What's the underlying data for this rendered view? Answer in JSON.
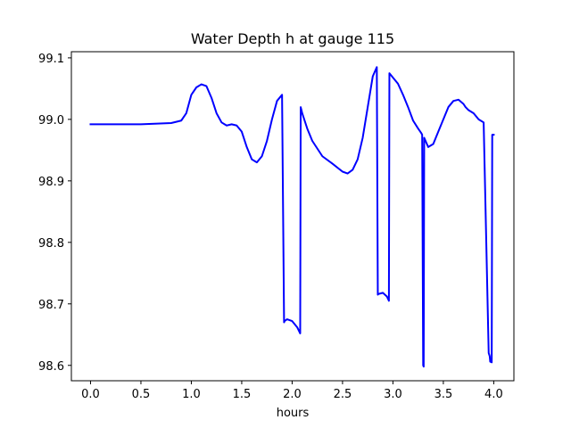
{
  "chart_data": {
    "type": "line",
    "title": "Water Depth h at gauge 115",
    "xlabel": "hours",
    "ylabel": "",
    "xlim": [
      -0.19,
      4.2
    ],
    "ylim": [
      98.575,
      99.11
    ],
    "xticks": [
      0.0,
      0.5,
      1.0,
      1.5,
      2.0,
      2.5,
      3.0,
      3.5,
      4.0
    ],
    "xtick_labels": [
      "0.0",
      "0.5",
      "1.0",
      "1.5",
      "2.0",
      "2.5",
      "3.0",
      "3.5",
      "4.0"
    ],
    "yticks": [
      98.6,
      98.7,
      98.8,
      98.9,
      99.0,
      99.1
    ],
    "ytick_labels": [
      "98.6",
      "98.7",
      "98.8",
      "98.9",
      "99.0",
      "99.1"
    ],
    "grid": false,
    "legend": "none",
    "series": [
      {
        "color": "#0000ff",
        "x": [
          0.0,
          0.5,
          0.8,
          0.9,
          0.95,
          1.0,
          1.05,
          1.1,
          1.15,
          1.2,
          1.25,
          1.3,
          1.35,
          1.4,
          1.45,
          1.5,
          1.55,
          1.6,
          1.65,
          1.7,
          1.75,
          1.8,
          1.85,
          1.9,
          1.92,
          1.925,
          1.95,
          2.0,
          2.05,
          2.08,
          2.085,
          2.1,
          2.15,
          2.2,
          2.3,
          2.4,
          2.5,
          2.55,
          2.6,
          2.65,
          2.7,
          2.75,
          2.8,
          2.84,
          2.85,
          2.855,
          2.9,
          2.94,
          2.96,
          2.965,
          3.0,
          3.05,
          3.1,
          3.15,
          3.2,
          3.25,
          3.28,
          3.29,
          3.3,
          3.305,
          3.31,
          3.35,
          3.4,
          3.45,
          3.5,
          3.55,
          3.6,
          3.65,
          3.7,
          3.72,
          3.75,
          3.8,
          3.85,
          3.9,
          3.95,
          3.96,
          3.965,
          3.98,
          3.985,
          4.0
        ],
        "y": [
          98.992,
          98.992,
          98.994,
          98.998,
          99.01,
          99.04,
          99.052,
          99.057,
          99.054,
          99.035,
          99.01,
          98.995,
          98.99,
          98.992,
          98.99,
          98.98,
          98.955,
          98.935,
          98.93,
          98.94,
          98.965,
          99.0,
          99.03,
          99.04,
          98.67,
          98.672,
          98.675,
          98.672,
          98.662,
          98.652,
          99.02,
          99.01,
          98.985,
          98.965,
          98.94,
          98.928,
          98.915,
          98.912,
          98.918,
          98.935,
          98.97,
          99.02,
          99.07,
          99.085,
          98.715,
          98.716,
          98.718,
          98.712,
          98.705,
          99.075,
          99.068,
          99.058,
          99.04,
          99.02,
          98.998,
          98.985,
          98.978,
          98.975,
          98.6,
          98.598,
          98.97,
          98.955,
          98.96,
          98.98,
          99.0,
          99.02,
          99.03,
          99.032,
          99.025,
          99.02,
          99.015,
          99.01,
          99.0,
          98.995,
          98.62,
          98.615,
          98.606,
          98.605,
          98.975,
          98.975
        ]
      }
    ]
  }
}
